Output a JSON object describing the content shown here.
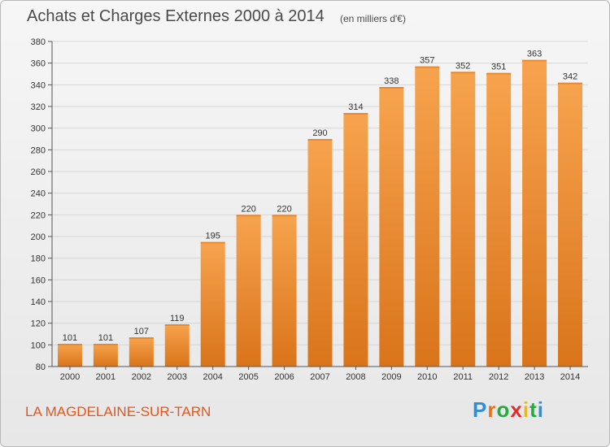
{
  "header": {
    "title": "Achats et Charges Externes 2000 à 2014",
    "unit": "(en milliers d'€)"
  },
  "footer": {
    "commune": "LA MAGDELAINE-SUR-TARN",
    "logo_letters": [
      "P",
      "r",
      "o",
      "x",
      "i",
      "t",
      "i"
    ],
    "logo_colors": [
      "#2f8fd3",
      "#e8701c",
      "#2aa842",
      "#e62b2b",
      "#f2b800",
      "#2aa842",
      "#2f8fd3"
    ]
  },
  "colors": {
    "bar_light": "#f7a34e",
    "bar_dark": "#d9741a",
    "grid": "#d6d6d6",
    "axis_text": "#333333"
  },
  "chart_data": {
    "type": "bar",
    "categories": [
      "2000",
      "2001",
      "2002",
      "2003",
      "2004",
      "2005",
      "2006",
      "2007",
      "2008",
      "2009",
      "2010",
      "2011",
      "2012",
      "2013",
      "2014"
    ],
    "values": [
      101,
      101,
      107,
      119,
      195,
      220,
      220,
      290,
      314,
      338,
      357,
      352,
      351,
      363,
      342
    ],
    "data_labels": [
      "101",
      "101",
      "107",
      "119",
      "195",
      "220",
      "220",
      "290",
      "314",
      "338",
      "357",
      "352",
      "351",
      "363",
      "342"
    ],
    "yticks": [
      80,
      100,
      120,
      140,
      160,
      180,
      200,
      220,
      240,
      260,
      280,
      300,
      320,
      340,
      360,
      380
    ],
    "ylim": [
      80,
      380
    ],
    "grid": true,
    "legend": "none"
  }
}
